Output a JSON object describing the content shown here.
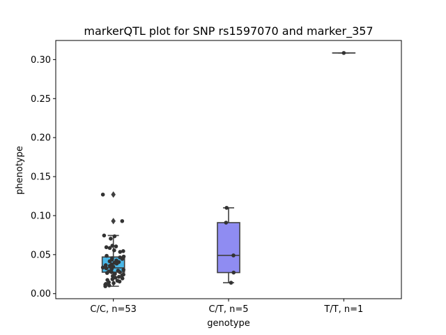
{
  "chart_data": {
    "type": "box",
    "title": "markerQTL plot for SNP rs1597070 and marker_357",
    "xlabel": "genotype",
    "ylabel": "phenotype",
    "ylim": [
      -0.0065,
      0.3245
    ],
    "y_ticks": [
      0.0,
      0.05,
      0.1,
      0.15,
      0.2,
      0.25,
      0.3
    ],
    "y_tick_labels": [
      "0.00",
      "0.05",
      "0.10",
      "0.15",
      "0.20",
      "0.25",
      "0.30"
    ],
    "grid": false,
    "categories": [
      "C/C, n=53",
      "C/T, n=5",
      "T/T, n=1"
    ],
    "boxes": [
      {
        "category": "C/C, n=53",
        "color": "#4ab8e8",
        "q1": 0.0275,
        "median": 0.033,
        "q3": 0.047,
        "whisker_low": 0.0095,
        "whisker_high": 0.0745,
        "outliers": [
          0.093,
          0.127
        ]
      },
      {
        "category": "C/T, n=5",
        "color": "#8f8cf2",
        "q1": 0.027,
        "median": 0.049,
        "q3": 0.091,
        "whisker_low": 0.014,
        "whisker_high": 0.11,
        "outliers": []
      },
      {
        "category": "T/T, n=1",
        "color": "#b07ac9",
        "q1": 0.3085,
        "median": 0.3085,
        "q3": 0.3085,
        "whisker_low": 0.3085,
        "whisker_high": 0.3085,
        "outliers": []
      }
    ],
    "points": [
      {
        "category": "C/C, n=53",
        "values": [
          0.127,
          0.093,
          0.0745,
          0.0735,
          0.0705,
          0.0615,
          0.0605,
          0.0595,
          0.0585,
          0.0555,
          0.0545,
          0.0535,
          0.0485,
          0.0475,
          0.0465,
          0.0455,
          0.0445,
          0.0435,
          0.0425,
          0.0415,
          0.0405,
          0.0395,
          0.0385,
          0.0375,
          0.0365,
          0.0355,
          0.0345,
          0.0335,
          0.0325,
          0.0315,
          0.0305,
          0.0295,
          0.0285,
          0.0275,
          0.0265,
          0.0255,
          0.0245,
          0.0235,
          0.0225,
          0.0215,
          0.0205,
          0.0195,
          0.0185,
          0.0175,
          0.0165,
          0.0155,
          0.0145,
          0.0135,
          0.0125,
          0.0115,
          0.0105,
          0.0095,
          0.0275
        ]
      },
      {
        "category": "C/T, n=5",
        "values": [
          0.11,
          0.091,
          0.049,
          0.027,
          0.014
        ]
      },
      {
        "category": "T/T, n=1",
        "values": [
          0.3085
        ]
      }
    ]
  }
}
